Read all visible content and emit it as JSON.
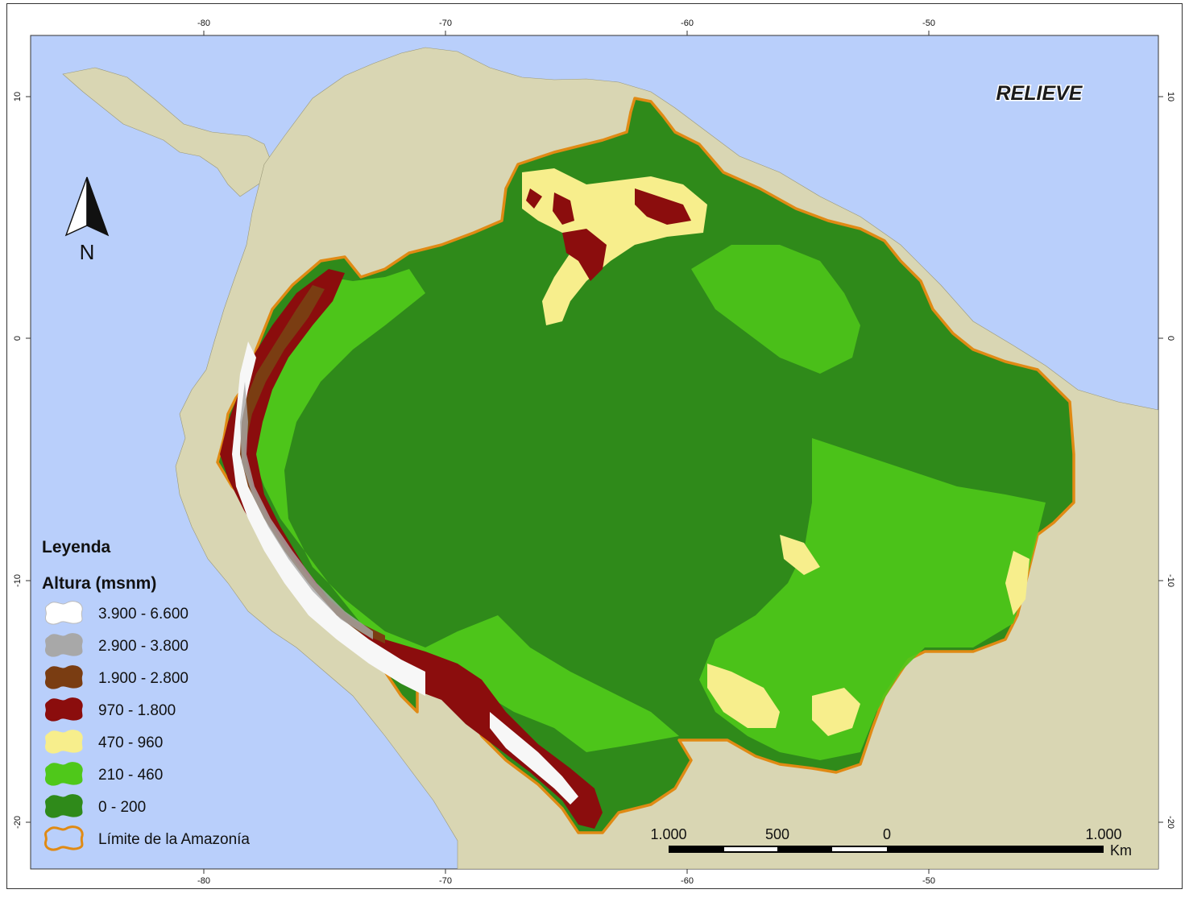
{
  "map": {
    "title": "RELIEVE",
    "colors": {
      "ocean": "#b9cffb",
      "land": "#d9d6b3",
      "boundary": "#e08a14"
    }
  },
  "axes": {
    "top": [
      "-80",
      "-70",
      "-60",
      "-50"
    ],
    "bottom": [
      "-80",
      "-70",
      "-60",
      "-50"
    ],
    "left": [
      "10",
      "0",
      "-10",
      "-20"
    ],
    "right": [
      "10",
      "0",
      "-10",
      "-20"
    ]
  },
  "north_arrow": {
    "label": "N",
    "icon": "north-arrow-icon"
  },
  "legend": {
    "title": "Leyenda",
    "subtitle": "Altura (msnm)",
    "items": [
      {
        "label": "3.900 - 6.600",
        "color": "#ffffff"
      },
      {
        "label": "2.900 - 3.800",
        "color": "#a8a8a8"
      },
      {
        "label": "1.900 - 2.800",
        "color": "#7a3d12"
      },
      {
        "label": "970 - 1.800",
        "color": "#8b0d0d"
      },
      {
        "label": "470 - 960",
        "color": "#f7ee8c"
      },
      {
        "label": "210 - 460",
        "color": "#4fc81a"
      },
      {
        "label": "0 - 200",
        "color": "#2f8a1a"
      },
      {
        "label": "Límite de la Amazonía",
        "color": "#e08a14"
      }
    ]
  },
  "scale_bar": {
    "labels": [
      "1.000",
      "500",
      "0",
      "1.000"
    ],
    "unit": "Km"
  }
}
